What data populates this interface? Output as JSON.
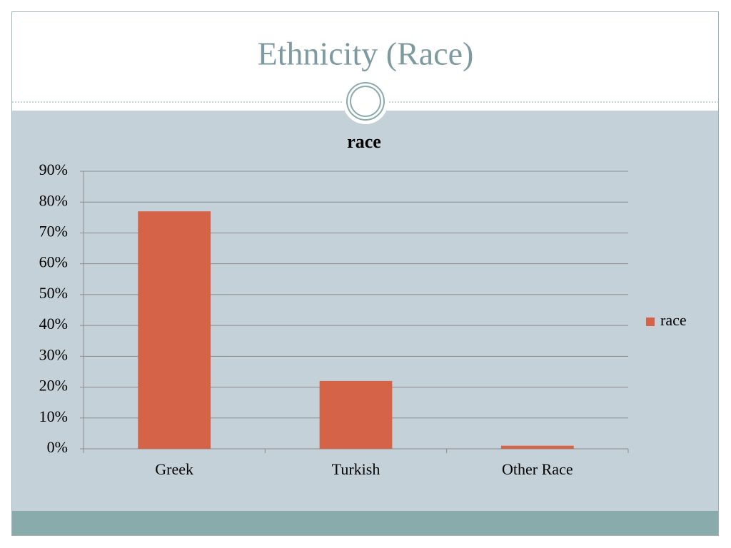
{
  "slide_title": "Ethnicity (Race)",
  "chart_data": {
    "type": "bar",
    "title": "race",
    "categories": [
      "Greek",
      "Turkish",
      "Other Race"
    ],
    "series": [
      {
        "name": "race",
        "color": "#d46348",
        "values": [
          77,
          22,
          1
        ]
      }
    ],
    "ylim": [
      0,
      90
    ],
    "yticks": [
      {
        "value": 0,
        "label": "0%"
      },
      {
        "value": 10,
        "label": "10%"
      },
      {
        "value": 20,
        "label": "20%"
      },
      {
        "value": 30,
        "label": "30%"
      },
      {
        "value": 40,
        "label": "40%"
      },
      {
        "value": 50,
        "label": "50%"
      },
      {
        "value": 60,
        "label": "60%"
      },
      {
        "value": 70,
        "label": "70%"
      },
      {
        "value": 80,
        "label": "80%"
      },
      {
        "value": 90,
        "label": "90%"
      }
    ],
    "grid": true,
    "legend": "right"
  }
}
